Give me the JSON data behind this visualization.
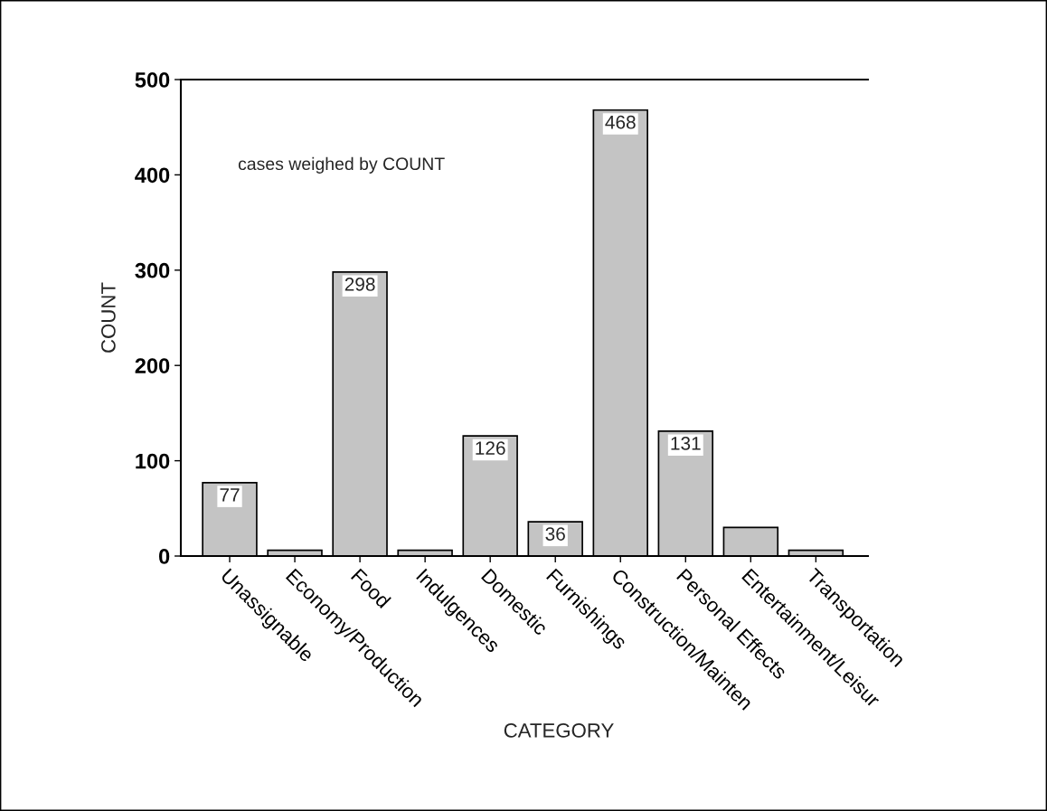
{
  "chart_data": {
    "type": "bar",
    "xlabel": "CATEGORY",
    "ylabel": "COUNT",
    "categories": [
      "Unassignable",
      "Economy/Production",
      "Food",
      "Indulgences",
      "Domestic",
      "Furnishings",
      "Construction/Mainten",
      "Personal Effects",
      "Entertainment/Leisur",
      "Transportation"
    ],
    "values": [
      77,
      6,
      298,
      6,
      126,
      36,
      468,
      131,
      30,
      6
    ],
    "value_labels": [
      "77",
      null,
      "298",
      null,
      "126",
      "36",
      "468",
      "131",
      null,
      null
    ],
    "color": "#c4c4c4",
    "ylim": [
      0,
      500
    ],
    "yticks": [
      0,
      100,
      200,
      300,
      400,
      500
    ],
    "grid": false,
    "annotations": [
      "cases weighed by COUNT"
    ]
  }
}
